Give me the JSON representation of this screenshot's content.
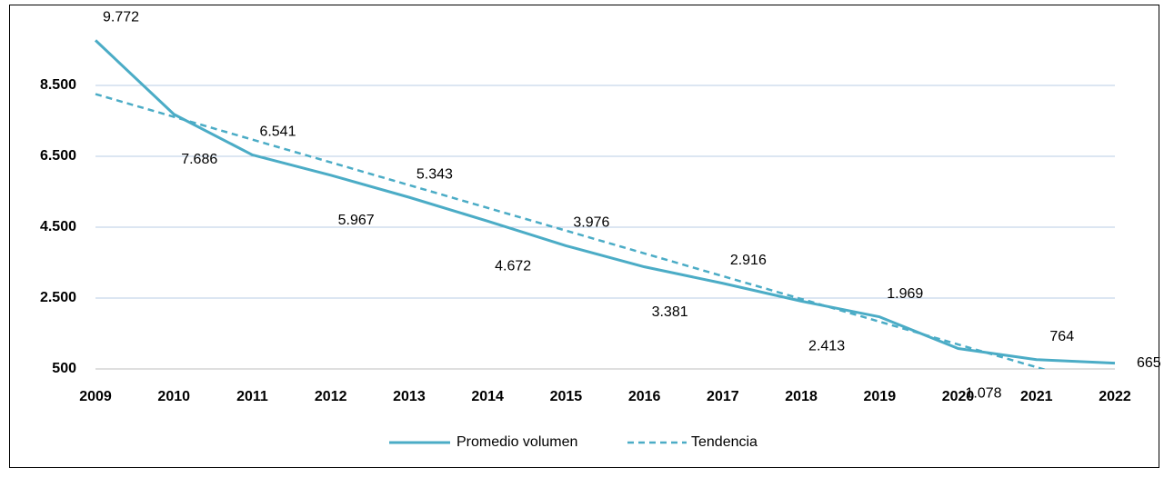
{
  "chart_data": {
    "type": "line",
    "categories": [
      "2009",
      "2010",
      "2011",
      "2012",
      "2013",
      "2014",
      "2015",
      "2016",
      "2017",
      "2018",
      "2019",
      "2020",
      "2021",
      "2022"
    ],
    "series": [
      {
        "name": "Promedio volumen",
        "color": "#4bacc6",
        "values": [
          9772,
          7686,
          6541,
          5967,
          5343,
          4672,
          3976,
          3381,
          2916,
          2413,
          1969,
          1078,
          764,
          665
        ],
        "value_labels": [
          "9.772",
          "7.686",
          "6.541",
          "5.967",
          "5.343",
          "4.672",
          "3.976",
          "3.381",
          "2.916",
          "2.413",
          "1.969",
          "1.078",
          "764",
          "665"
        ]
      }
    ],
    "trend": {
      "name": "Tendencia",
      "color": "#4bacc6",
      "dashed": true
    },
    "ylim": [
      500,
      10500
    ],
    "yticks": [
      500,
      {
        "value": 2500,
        "label": "2.500"
      },
      {
        "value": 4500,
        "label": "4.500"
      },
      {
        "value": 6500,
        "label": "6.500"
      },
      {
        "value": 8500,
        "label": "8.500"
      }
    ],
    "grid": true,
    "legend": "bottom"
  }
}
